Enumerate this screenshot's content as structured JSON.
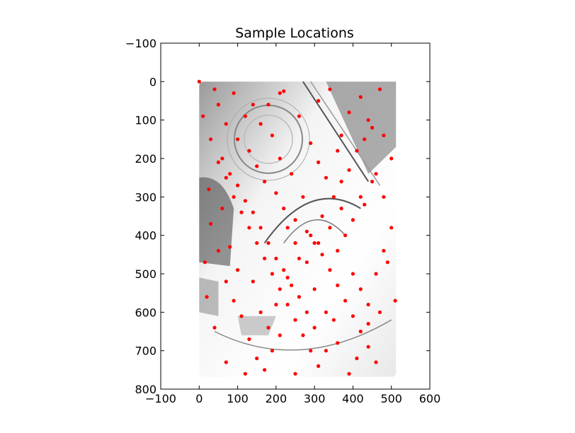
{
  "chart_data": {
    "type": "scatter",
    "title": "Sample Locations",
    "xlabel": "",
    "ylabel": "",
    "xlim": [
      -100,
      600
    ],
    "ylim": [
      800,
      -100
    ],
    "y_inverted": true,
    "xticks": [
      -100,
      0,
      100,
      200,
      300,
      400,
      500,
      600
    ],
    "yticks": [
      -100,
      0,
      100,
      200,
      300,
      400,
      500,
      600,
      700,
      800
    ],
    "grid": false,
    "background_image": {
      "description": "grayscale photo of an ornate domed interior (panoramic, fisheye)",
      "extent_x": [
        0,
        512
      ],
      "extent_y": [
        0,
        768
      ]
    },
    "marker_color": "#ff0000",
    "series": [
      {
        "points": [
          [
            0,
            0
          ],
          [
            10,
            90
          ],
          [
            30,
            150
          ],
          [
            50,
            210
          ],
          [
            70,
            250
          ],
          [
            90,
            300
          ],
          [
            110,
            340
          ],
          [
            130,
            380
          ],
          [
            150,
            420
          ],
          [
            170,
            460
          ],
          [
            190,
            500
          ],
          [
            210,
            540
          ],
          [
            230,
            580
          ],
          [
            250,
            620
          ],
          [
            270,
            660
          ],
          [
            290,
            700
          ],
          [
            310,
            740
          ],
          [
            50,
            60
          ],
          [
            90,
            30
          ],
          [
            70,
            110
          ],
          [
            100,
            150
          ],
          [
            130,
            180
          ],
          [
            150,
            220
          ],
          [
            170,
            260
          ],
          [
            200,
            290
          ],
          [
            220,
            330
          ],
          [
            250,
            360
          ],
          [
            280,
            390
          ],
          [
            300,
            420
          ],
          [
            320,
            450
          ],
          [
            340,
            490
          ],
          [
            360,
            530
          ],
          [
            380,
            570
          ],
          [
            400,
            610
          ],
          [
            420,
            650
          ],
          [
            440,
            690
          ],
          [
            460,
            730
          ],
          [
            120,
            90
          ],
          [
            180,
            60
          ],
          [
            220,
            25
          ],
          [
            260,
            90
          ],
          [
            310,
            50
          ],
          [
            340,
            20
          ],
          [
            370,
            140
          ],
          [
            390,
            80
          ],
          [
            420,
            40
          ],
          [
            440,
            100
          ],
          [
            470,
            20
          ],
          [
            480,
            140
          ],
          [
            500,
            200
          ],
          [
            460,
            240
          ],
          [
            430,
            320
          ],
          [
            400,
            360
          ],
          [
            380,
            400
          ],
          [
            360,
            440
          ],
          [
            420,
            300
          ],
          [
            450,
            260
          ],
          [
            480,
            300
          ],
          [
            500,
            380
          ],
          [
            490,
            470
          ],
          [
            510,
            570
          ],
          [
            470,
            600
          ],
          [
            440,
            630
          ],
          [
            410,
            720
          ],
          [
            390,
            760
          ],
          [
            360,
            680
          ],
          [
            330,
            700
          ],
          [
            300,
            640
          ],
          [
            280,
            600
          ],
          [
            260,
            560
          ],
          [
            240,
            530
          ],
          [
            220,
            490
          ],
          [
            200,
            460
          ],
          [
            180,
            420
          ],
          [
            160,
            380
          ],
          [
            140,
            340
          ],
          [
            120,
            310
          ],
          [
            100,
            270
          ],
          [
            80,
            240
          ],
          [
            60,
            200
          ],
          [
            30,
            370
          ],
          [
            50,
            440
          ],
          [
            70,
            520
          ],
          [
            90,
            570
          ],
          [
            110,
            610
          ],
          [
            130,
            670
          ],
          [
            150,
            720
          ],
          [
            170,
            750
          ],
          [
            190,
            700
          ],
          [
            210,
            660
          ],
          [
            40,
            640
          ],
          [
            20,
            560
          ],
          [
            15,
            470
          ],
          [
            25,
            280
          ],
          [
            60,
            330
          ],
          [
            80,
            430
          ],
          [
            100,
            490
          ],
          [
            140,
            520
          ],
          [
            160,
            600
          ],
          [
            180,
            640
          ],
          [
            200,
            580
          ],
          [
            230,
            510
          ],
          [
            260,
            460
          ],
          [
            290,
            400
          ],
          [
            320,
            350
          ],
          [
            350,
            300
          ],
          [
            370,
            260
          ],
          [
            390,
            230
          ],
          [
            410,
            180
          ],
          [
            430,
            150
          ],
          [
            450,
            120
          ],
          [
            330,
            600
          ],
          [
            350,
            620
          ],
          [
            300,
            540
          ],
          [
            280,
            470
          ],
          [
            250,
            420
          ],
          [
            230,
            380
          ],
          [
            400,
            500
          ],
          [
            420,
            540
          ],
          [
            440,
            580
          ],
          [
            460,
            500
          ],
          [
            480,
            440
          ],
          [
            370,
            330
          ],
          [
            340,
            380
          ],
          [
            310,
            420
          ],
          [
            270,
            300
          ],
          [
            240,
            240
          ],
          [
            210,
            200
          ],
          [
            190,
            140
          ],
          [
            160,
            110
          ],
          [
            140,
            60
          ],
          [
            210,
            30
          ],
          [
            290,
            160
          ],
          [
            310,
            210
          ],
          [
            330,
            250
          ],
          [
            360,
            180
          ],
          [
            40,
            20
          ],
          [
            70,
            730
          ],
          [
            120,
            760
          ],
          [
            250,
            760
          ]
        ]
      }
    ]
  }
}
